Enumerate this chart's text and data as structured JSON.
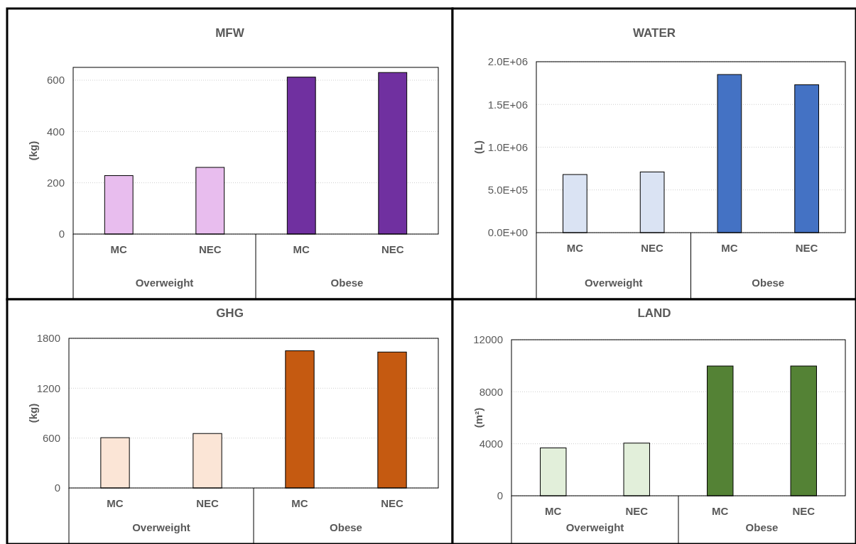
{
  "chart_data": [
    {
      "type": "bar",
      "title": "MFW",
      "ylabel": "(kg)",
      "categories": [
        "MC",
        "NEC",
        "MC",
        "NEC"
      ],
      "values": [
        228,
        260,
        612,
        630
      ],
      "colors": [
        "#e8bdee",
        "#e8bdee",
        "#7030a0",
        "#7030a0"
      ],
      "ylim": [
        0,
        650
      ],
      "yticks": [
        0,
        200,
        400,
        600
      ],
      "grid": "y",
      "annotations": [
        "Overweight",
        "Obese"
      ]
    },
    {
      "type": "bar",
      "title": "WATER",
      "ylabel": "(L)",
      "categories": [
        "MC",
        "NEC",
        "MC",
        "NEC"
      ],
      "values": [
        680000,
        710000,
        1850000,
        1730000
      ],
      "colors": [
        "#dae3f3",
        "#dae3f3",
        "#4472c4",
        "#4472c4"
      ],
      "ylim": [
        0,
        2000000
      ],
      "yticks": [
        {
          "value": 0,
          "label": "0.0E+00"
        },
        {
          "value": 500000,
          "label": "5.0E+05"
        },
        {
          "value": 1000000,
          "label": "1.0E+06"
        },
        {
          "value": 1500000,
          "label": "1.5E+06"
        },
        {
          "value": 2000000,
          "label": "2.0E+06"
        }
      ],
      "grid": "y",
      "annotations": [
        "Overweight",
        "Obese"
      ]
    },
    {
      "type": "bar",
      "title": "GHG",
      "ylabel": "(kg)",
      "categories": [
        "MC",
        "NEC",
        "MC",
        "NEC"
      ],
      "values": [
        605,
        655,
        1650,
        1635
      ],
      "colors": [
        "#fbe5d6",
        "#fbe5d6",
        "#c55a11",
        "#c55a11"
      ],
      "ylim": [
        0,
        1800
      ],
      "yticks": [
        0,
        600,
        1200,
        1800
      ],
      "grid": "y",
      "annotations": [
        "Overweight",
        "Obese"
      ]
    },
    {
      "type": "bar",
      "title": "LAND",
      "ylabel": "(m²)",
      "categories": [
        "MC",
        "NEC",
        "MC",
        "NEC"
      ],
      "values": [
        3680,
        4050,
        9980,
        9980
      ],
      "colors": [
        "#e2efda",
        "#e2efda",
        "#548235",
        "#548235"
      ],
      "ylim": [
        0,
        12000
      ],
      "yticks": [
        0,
        4000,
        8000,
        12000
      ],
      "grid": "y",
      "annotations": [
        "Overweight",
        "Obese"
      ]
    }
  ]
}
